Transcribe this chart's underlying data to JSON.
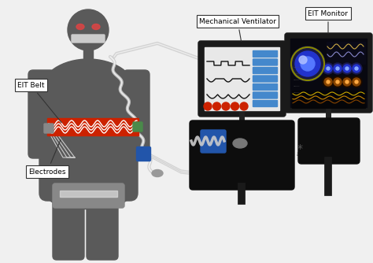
{
  "bg_color": "#f0f0f0",
  "body_color": "#5a5a5a",
  "red_color": "#cc2200",
  "blue_color": "#2255aa",
  "white": "#ffffff",
  "black": "#111111",
  "label_EIT_Belt": "EIT Belt",
  "label_Electrodes": "Electrodes",
  "label_Mech_Vent": "Mechanical Ventilator",
  "label_EIT_Mon": "EIT Monitor",
  "star": "*"
}
